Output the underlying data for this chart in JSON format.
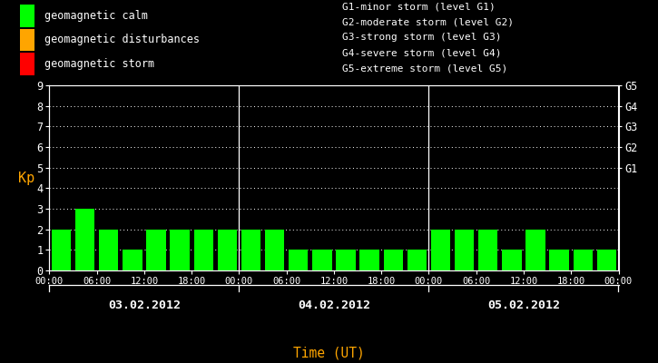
{
  "background_color": "#000000",
  "bar_color": "#00ff00",
  "text_color": "#ffffff",
  "orange_color": "#ffa500",
  "days": [
    "03.02.2012",
    "04.02.2012",
    "05.02.2012"
  ],
  "kp_values": [
    [
      2,
      3,
      2,
      1,
      2,
      2,
      2,
      2
    ],
    [
      2,
      2,
      1,
      1,
      1,
      1,
      1,
      1
    ],
    [
      2,
      2,
      2,
      1,
      2,
      1,
      1,
      1
    ]
  ],
  "ylim": [
    0,
    9
  ],
  "yticks": [
    0,
    1,
    2,
    3,
    4,
    5,
    6,
    7,
    8,
    9
  ],
  "right_tick_positions": [
    5,
    6,
    7,
    8,
    9
  ],
  "right_tick_labels": [
    "G1",
    "G2",
    "G3",
    "G4",
    "G5"
  ],
  "legend_items": [
    {
      "label": "geomagnetic calm",
      "color": "#00ff00"
    },
    {
      "label": "geomagnetic disturbances",
      "color": "#ffa500"
    },
    {
      "label": "geomagnetic storm",
      "color": "#ff0000"
    }
  ],
  "storm_legend": [
    "G1-minor storm (level G1)",
    "G2-moderate storm (level G2)",
    "G3-strong storm (level G3)",
    "G4-severe storm (level G4)",
    "G5-extreme storm (level G5)"
  ],
  "xlabel": "Time (UT)",
  "ylabel": "Kp",
  "time_labels": [
    "00:00",
    "06:00",
    "12:00",
    "18:00",
    "00:00"
  ]
}
